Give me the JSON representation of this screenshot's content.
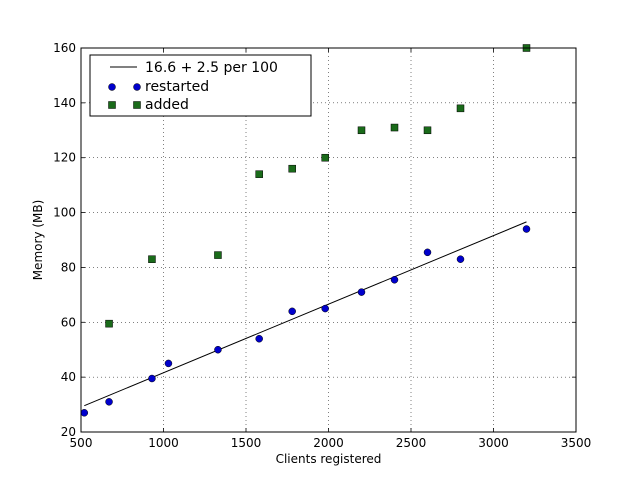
{
  "chart_data": {
    "type": "scatter",
    "xlabel": "Clients registered",
    "ylabel": "Memory (MB)",
    "xlim": [
      500,
      3500
    ],
    "ylim": [
      20,
      160
    ],
    "xticks": [
      500,
      1000,
      1500,
      2000,
      2500,
      3000,
      3500
    ],
    "yticks": [
      20,
      40,
      60,
      80,
      100,
      120,
      140,
      160
    ],
    "grid": true,
    "legend_position": "top-left",
    "series": [
      {
        "name": "16.6 + 2.5 per 100",
        "kind": "line",
        "color": "#000000",
        "x": [
          520,
          3200
        ],
        "y": [
          29.6,
          96.6
        ]
      },
      {
        "name": "restarted",
        "kind": "circle-markers",
        "color": "#0000cc",
        "x": [
          520,
          670,
          930,
          1030,
          1330,
          1580,
          1780,
          1980,
          2200,
          2400,
          2600,
          2800,
          3200
        ],
        "y": [
          27,
          31,
          39.5,
          45,
          50,
          54,
          64,
          65,
          71,
          75.5,
          85.5,
          83,
          94
        ]
      },
      {
        "name": "added",
        "kind": "square-markers",
        "color": "#1a6b1a",
        "x": [
          670,
          930,
          1330,
          1580,
          1780,
          1980,
          2200,
          2400,
          2600,
          2800,
          3200
        ],
        "y": [
          59.5,
          83,
          84.5,
          114,
          116,
          120,
          130,
          131,
          130,
          138,
          160
        ]
      }
    ]
  }
}
